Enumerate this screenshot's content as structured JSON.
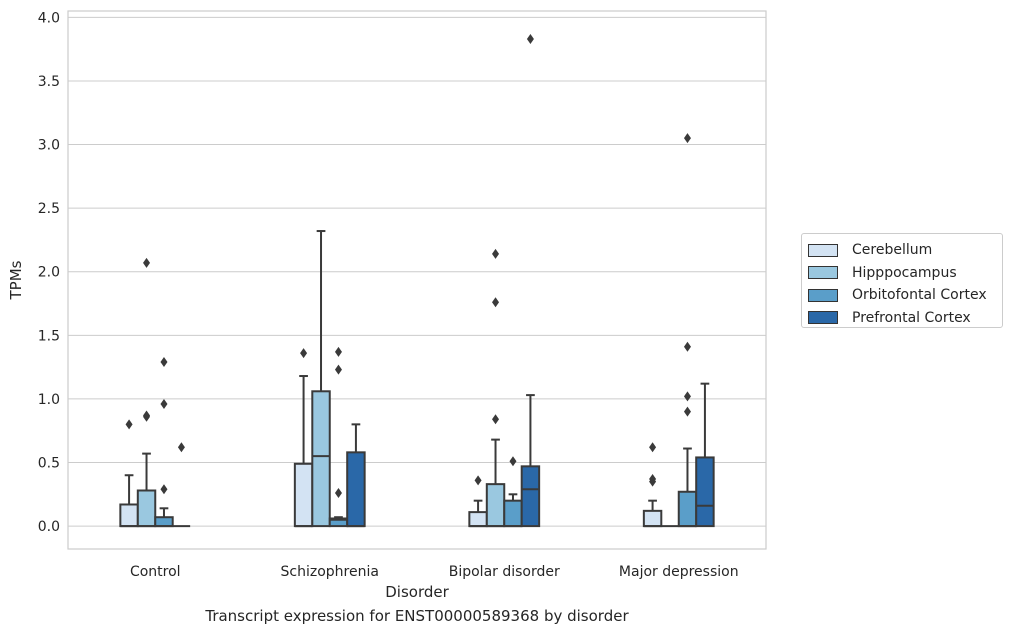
{
  "chart_data": {
    "type": "box",
    "xlabel": "Disorder",
    "ylabel": "TPMs",
    "caption": "Transcript expression for ENST00000589368 by disorder",
    "ylim": [
      -0.18,
      4.05
    ],
    "yticks": [
      "0.0",
      "0.5",
      "1.0",
      "1.5",
      "2.0",
      "2.5",
      "3.0",
      "3.5",
      "4.0"
    ],
    "categories": [
      "Control",
      "Schizophrenia",
      "Bipolar disorder",
      "Major depression"
    ],
    "legend_position": "right-center",
    "grid": "horizontal",
    "series": [
      {
        "name": "Cerebellum",
        "color": "#d3e3f3",
        "boxes": [
          {
            "q1": 0.0,
            "median": 0.0,
            "q3": 0.17,
            "whisker_low": 0.0,
            "whisker_high": 0.4,
            "outliers": [
              0.8
            ]
          },
          {
            "q1": 0.0,
            "median": 0.0,
            "q3": 0.49,
            "whisker_low": 0.0,
            "whisker_high": 1.18,
            "outliers": [
              1.36
            ]
          },
          {
            "q1": 0.0,
            "median": 0.0,
            "q3": 0.11,
            "whisker_low": 0.0,
            "whisker_high": 0.2,
            "outliers": [
              0.36
            ]
          },
          {
            "q1": 0.0,
            "median": 0.0,
            "q3": 0.12,
            "whisker_low": 0.0,
            "whisker_high": 0.2,
            "outliers": [
              0.35,
              0.37,
              0.62
            ]
          }
        ]
      },
      {
        "name": "Hipppocampus",
        "color": "#9ac8e0",
        "boxes": [
          {
            "q1": 0.0,
            "median": 0.0,
            "q3": 0.28,
            "whisker_low": 0.0,
            "whisker_high": 0.57,
            "outliers": [
              0.86,
              0.87,
              2.07
            ]
          },
          {
            "q1": 0.0,
            "median": 0.55,
            "q3": 1.06,
            "whisker_low": 0.0,
            "whisker_high": 2.32,
            "outliers": []
          },
          {
            "q1": 0.0,
            "median": 0.0,
            "q3": 0.33,
            "whisker_low": 0.0,
            "whisker_high": 0.68,
            "outliers": [
              0.84,
              1.76,
              2.14
            ]
          },
          {
            "q1": 0.0,
            "median": 0.0,
            "q3": 0.0,
            "whisker_low": 0.0,
            "whisker_high": 0.0,
            "outliers": []
          }
        ]
      },
      {
        "name": "Orbitofontal Cortex",
        "color": "#5a9ec9",
        "boxes": [
          {
            "q1": 0.0,
            "median": 0.0,
            "q3": 0.07,
            "whisker_low": 0.0,
            "whisker_high": 0.14,
            "outliers": [
              0.29,
              0.96,
              1.29
            ]
          },
          {
            "q1": 0.0,
            "median": 0.05,
            "q3": 0.06,
            "whisker_low": 0.0,
            "whisker_high": 0.07,
            "outliers": [
              0.26,
              1.23,
              1.37
            ]
          },
          {
            "q1": 0.0,
            "median": 0.0,
            "q3": 0.2,
            "whisker_low": 0.0,
            "whisker_high": 0.25,
            "outliers": [
              0.51
            ]
          },
          {
            "q1": 0.0,
            "median": 0.0,
            "q3": 0.27,
            "whisker_low": 0.0,
            "whisker_high": 0.61,
            "outliers": [
              0.9,
              1.02,
              1.41,
              3.05
            ]
          }
        ]
      },
      {
        "name": "Prefrontal Cortex",
        "color": "#2a68a8",
        "boxes": [
          {
            "q1": 0.0,
            "median": 0.0,
            "q3": 0.0,
            "whisker_low": 0.0,
            "whisker_high": 0.0,
            "outliers": [
              0.62
            ]
          },
          {
            "q1": 0.0,
            "median": 0.0,
            "q3": 0.58,
            "whisker_low": 0.0,
            "whisker_high": 0.8,
            "outliers": []
          },
          {
            "q1": 0.0,
            "median": 0.29,
            "q3": 0.47,
            "whisker_low": 0.0,
            "whisker_high": 1.03,
            "outliers": [
              3.83
            ]
          },
          {
            "q1": 0.0,
            "median": 0.16,
            "q3": 0.54,
            "whisker_low": 0.0,
            "whisker_high": 1.12,
            "outliers": []
          }
        ]
      }
    ]
  }
}
